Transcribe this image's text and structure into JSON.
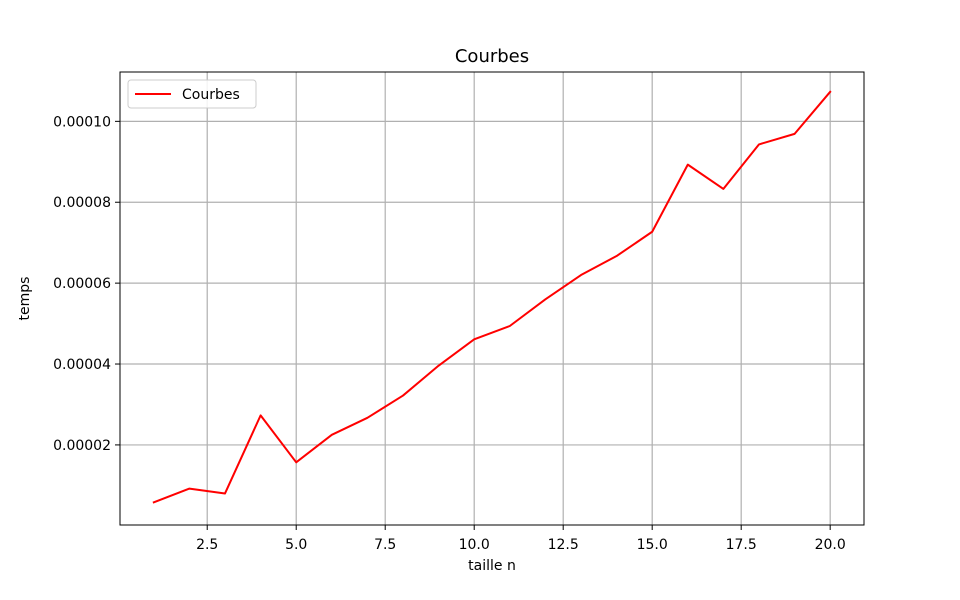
{
  "chart_data": {
    "type": "line",
    "title": "Courbes",
    "xlabel": "taille n",
    "ylabel": "temps",
    "xlim": [
      0.05,
      20.95
    ],
    "ylim": [
      2e-07,
      0.0001122
    ],
    "xticks": [
      2.5,
      5.0,
      7.5,
      10.0,
      12.5,
      15.0,
      17.5,
      20.0
    ],
    "xtick_labels": [
      "2.5",
      "5.0",
      "7.5",
      "10.0",
      "12.5",
      "15.0",
      "17.5",
      "20.0"
    ],
    "yticks": [
      2e-05,
      4e-05,
      6e-05,
      8e-05,
      0.0001
    ],
    "ytick_labels": [
      "0.00002",
      "0.00004",
      "0.00006",
      "0.00008",
      "0.00010"
    ],
    "grid": true,
    "legend_position": "top-left",
    "series": [
      {
        "name": "Courbes",
        "color": "#ff0000",
        "x": [
          1,
          2,
          3,
          4,
          5,
          6,
          7,
          8,
          9,
          10,
          11,
          12,
          13,
          14,
          15,
          16,
          17,
          18,
          19,
          20
        ],
        "y": [
          5.8e-06,
          9.2e-06,
          8e-06,
          2.73e-05,
          1.57e-05,
          2.25e-05,
          2.67e-05,
          3.22e-05,
          3.96e-05,
          4.61e-05,
          4.94e-05,
          5.6e-05,
          6.2e-05,
          6.67e-05,
          7.27e-05,
          8.93e-05,
          8.33e-05,
          9.43e-05,
          9.69e-05,
          0.0001073
        ]
      }
    ]
  }
}
